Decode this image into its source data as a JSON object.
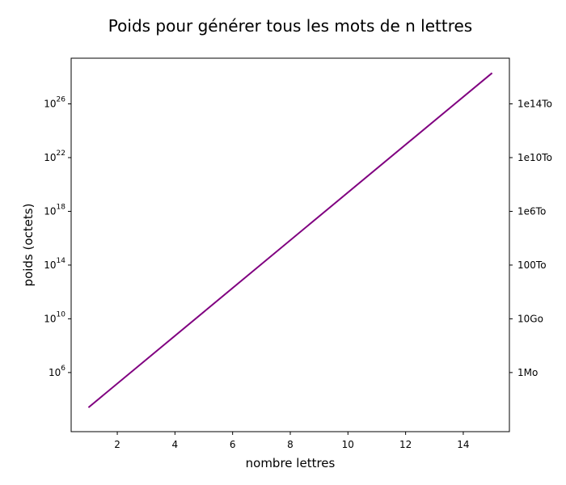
{
  "chart_data": {
    "type": "line",
    "title": "Poids pour générer tous les mots de n lettres",
    "xlabel": "nombre lettres",
    "ylabel": "poids (octets)",
    "yscale": "log",
    "xlim": [
      0.4,
      15.6
    ],
    "ylim_exp": [
      1.6,
      29.4
    ],
    "x_ticks": [
      2,
      4,
      6,
      8,
      10,
      12,
      14
    ],
    "y_ticks": [
      {
        "base": "10",
        "exp": "6",
        "value_exp": 6
      },
      {
        "base": "10",
        "exp": "10",
        "value_exp": 10
      },
      {
        "base": "10",
        "exp": "14",
        "value_exp": 14
      },
      {
        "base": "10",
        "exp": "18",
        "value_exp": 18
      },
      {
        "base": "10",
        "exp": "22",
        "value_exp": 22
      },
      {
        "base": "10",
        "exp": "26",
        "value_exp": 26
      }
    ],
    "y2_ticks": [
      {
        "label": "1Mo",
        "value_exp": 6
      },
      {
        "label": "10Go",
        "value_exp": 10
      },
      {
        "label": "100To",
        "value_exp": 14
      },
      {
        "label": "1e6To",
        "value_exp": 18
      },
      {
        "label": "1e10To",
        "value_exp": 22
      },
      {
        "label": "1e14To",
        "value_exp": 26
      }
    ],
    "series": [
      {
        "color": "#800080",
        "x": [
          1,
          15
        ],
        "y_exp": [
          3.4,
          28.3
        ]
      }
    ],
    "grid": false
  }
}
